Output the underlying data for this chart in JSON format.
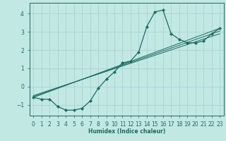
{
  "title": "",
  "xlabel": "Humidex (Indice chaleur)",
  "bg_color": "#c2e8e4",
  "grid_color": "#a8d4d0",
  "line_color": "#1a6b60",
  "marker_color": "#1a6b60",
  "xlim": [
    -0.5,
    23.5
  ],
  "ylim": [
    -1.6,
    4.6
  ],
  "yticks": [
    -1,
    0,
    1,
    2,
    3,
    4
  ],
  "xticks": [
    0,
    1,
    2,
    3,
    4,
    5,
    6,
    7,
    8,
    9,
    10,
    11,
    12,
    13,
    14,
    15,
    16,
    17,
    18,
    19,
    20,
    21,
    22,
    23
  ],
  "series": [
    {
      "x": [
        0,
        1,
        2,
        3,
        4,
        5,
        6,
        7,
        8,
        9,
        10,
        11,
        12,
        13,
        14,
        15,
        16,
        17,
        18,
        19,
        20,
        21,
        22,
        23
      ],
      "y": [
        -0.6,
        -0.7,
        -0.7,
        -1.1,
        -1.3,
        -1.3,
        -1.2,
        -0.8,
        -0.1,
        0.4,
        0.8,
        1.3,
        1.4,
        1.9,
        3.3,
        4.1,
        4.2,
        2.9,
        2.6,
        2.4,
        2.4,
        2.5,
        2.9,
        3.2
      ],
      "marker": true
    },
    {
      "x": [
        0,
        23
      ],
      "y": [
        -0.6,
        3.2
      ],
      "marker": false
    },
    {
      "x": [
        0,
        23
      ],
      "y": [
        -0.55,
        3.05
      ],
      "marker": false
    },
    {
      "x": [
        0,
        23
      ],
      "y": [
        -0.5,
        2.9
      ],
      "marker": false
    }
  ]
}
